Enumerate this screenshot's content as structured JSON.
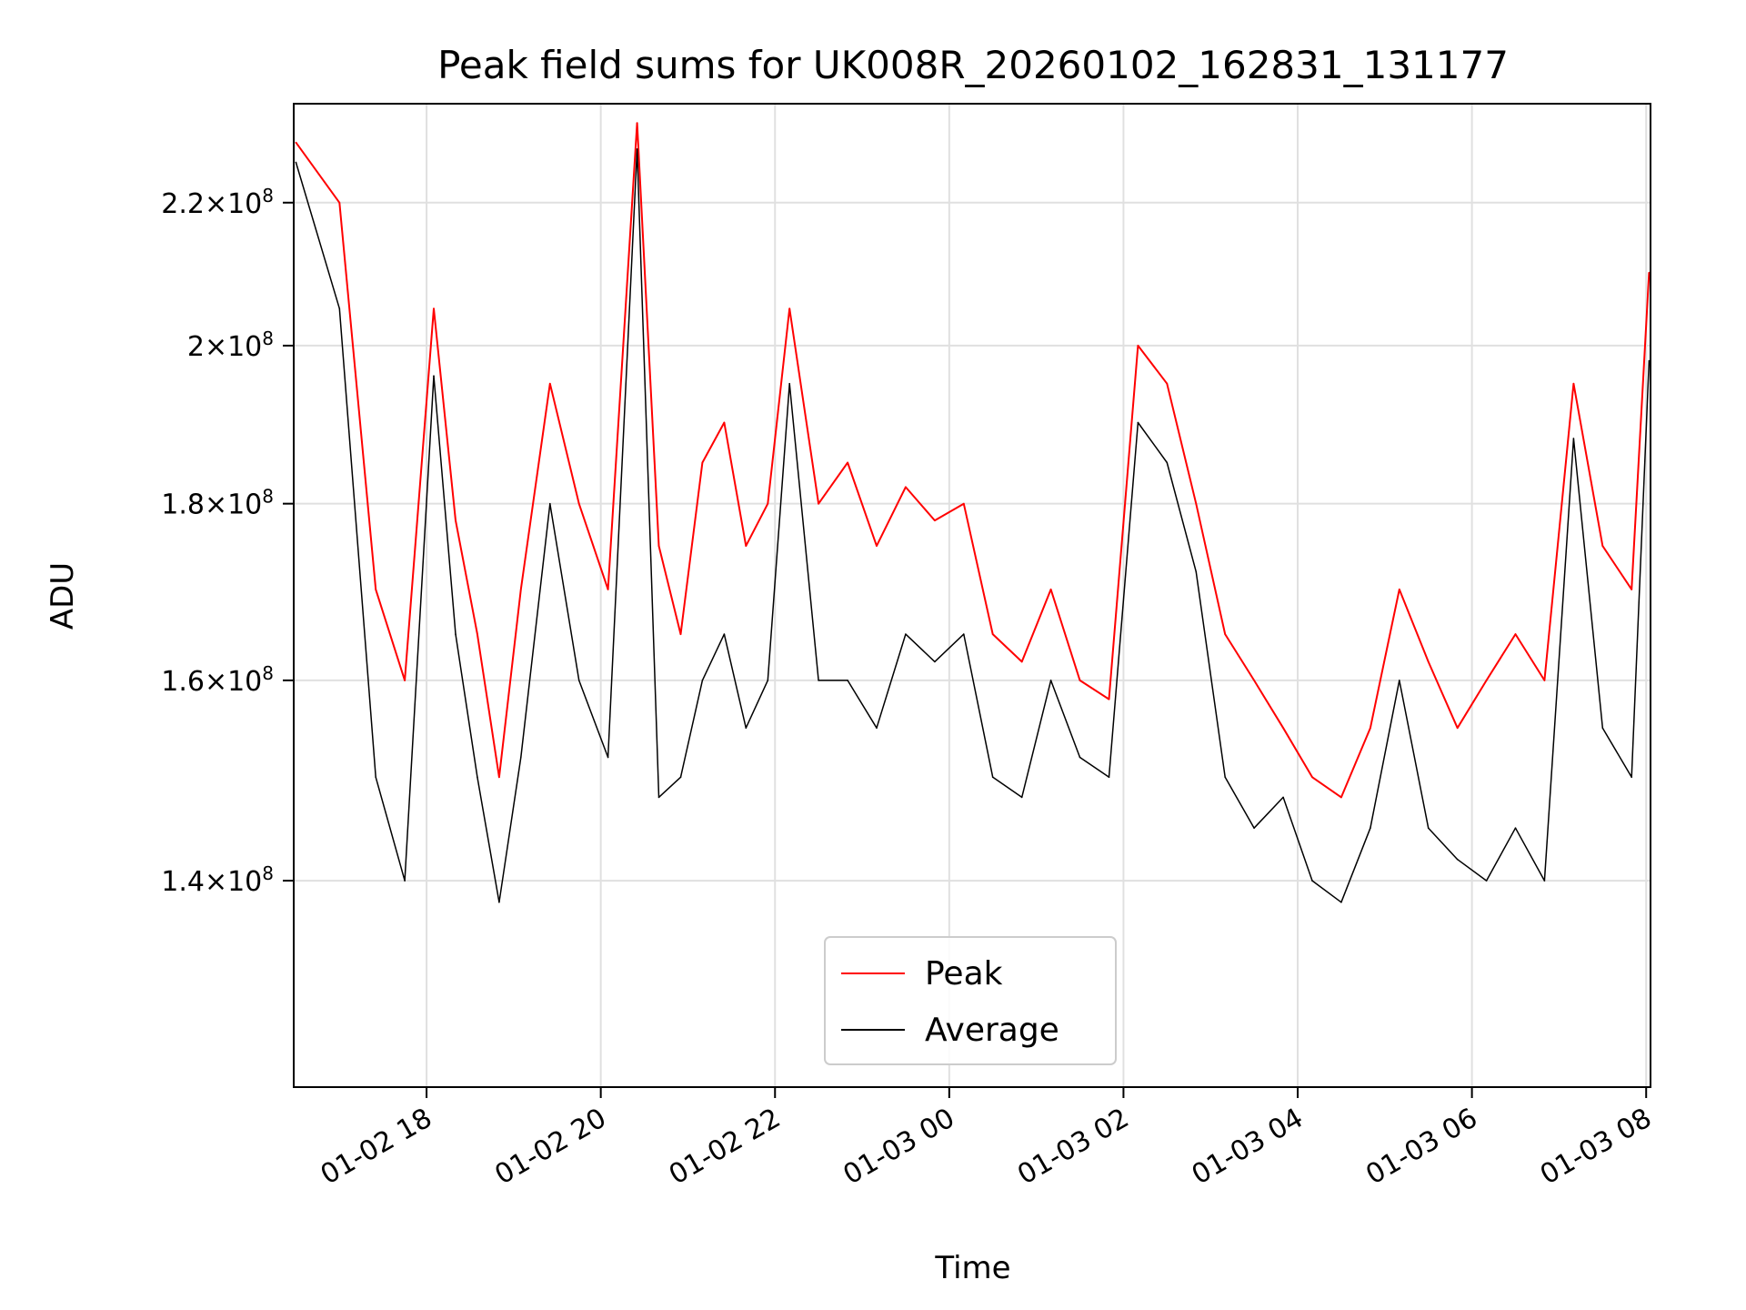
{
  "chart_data": {
    "type": "line",
    "title": "Peak field sums for UK008R_20260102_162831_131177",
    "xlabel": "Time",
    "ylabel": "ADU",
    "x_range": [
      "2026-01-02 16:28:31",
      "2026-01-03 08:03:00"
    ],
    "ylim": [
      122000000,
      235000000
    ],
    "y_scale": "log",
    "grid": true,
    "legend_position": "lower-center",
    "x_ticks": [
      {
        "value": "2026-01-02 18:00",
        "label": "01-02 18"
      },
      {
        "value": "2026-01-02 20:00",
        "label": "01-02 20"
      },
      {
        "value": "2026-01-02 22:00",
        "label": "01-02 22"
      },
      {
        "value": "2026-01-03 00:00",
        "label": "01-03 00"
      },
      {
        "value": "2026-01-03 02:00",
        "label": "01-03 02"
      },
      {
        "value": "2026-01-03 04:00",
        "label": "01-03 04"
      },
      {
        "value": "2026-01-03 06:00",
        "label": "01-03 06"
      },
      {
        "value": "2026-01-03 08:00",
        "label": "01-03 08"
      }
    ],
    "y_ticks": [
      {
        "value": 140000000,
        "mantissa": "1.4",
        "exponent": "8"
      },
      {
        "value": 160000000,
        "mantissa": "1.6",
        "exponent": "8"
      },
      {
        "value": 180000000,
        "mantissa": "1.8",
        "exponent": "8"
      },
      {
        "value": 200000000,
        "mantissa": "2",
        "exponent": "8"
      },
      {
        "value": 220000000,
        "mantissa": "2.2",
        "exponent": "8"
      }
    ],
    "series": [
      {
        "name": "Peak",
        "color": "#ff0000",
        "x": [
          "2026-01-02 16:30",
          "2026-01-02 17:00",
          "2026-01-02 17:25",
          "2026-01-02 17:45",
          "2026-01-02 18:05",
          "2026-01-02 18:20",
          "2026-01-02 18:35",
          "2026-01-02 18:50",
          "2026-01-02 19:05",
          "2026-01-02 19:25",
          "2026-01-02 19:45",
          "2026-01-02 20:05",
          "2026-01-02 20:25",
          "2026-01-02 20:40",
          "2026-01-02 20:55",
          "2026-01-02 21:10",
          "2026-01-02 21:25",
          "2026-01-02 21:40",
          "2026-01-02 21:55",
          "2026-01-02 22:10",
          "2026-01-02 22:30",
          "2026-01-02 22:50",
          "2026-01-02 23:10",
          "2026-01-02 23:30",
          "2026-01-02 23:50",
          "2026-01-03 00:10",
          "2026-01-03 00:30",
          "2026-01-03 00:50",
          "2026-01-03 01:10",
          "2026-01-03 01:30",
          "2026-01-03 01:50",
          "2026-01-03 02:10",
          "2026-01-03 02:30",
          "2026-01-03 02:50",
          "2026-01-03 03:10",
          "2026-01-03 03:30",
          "2026-01-03 03:50",
          "2026-01-03 04:10",
          "2026-01-03 04:30",
          "2026-01-03 04:50",
          "2026-01-03 05:10",
          "2026-01-03 05:30",
          "2026-01-03 05:50",
          "2026-01-03 06:10",
          "2026-01-03 06:30",
          "2026-01-03 06:50",
          "2026-01-03 07:10",
          "2026-01-03 07:30",
          "2026-01-03 07:50",
          "2026-01-03 08:02"
        ],
        "values": [
          229000000,
          220000000,
          170000000,
          160000000,
          205000000,
          178000000,
          165000000,
          150000000,
          170000000,
          195000000,
          180000000,
          170000000,
          232000000,
          175000000,
          165000000,
          185000000,
          190000000,
          175000000,
          180000000,
          205000000,
          180000000,
          185000000,
          175000000,
          182000000,
          178000000,
          180000000,
          165000000,
          162000000,
          170000000,
          160000000,
          158000000,
          200000000,
          195000000,
          180000000,
          165000000,
          160000000,
          155000000,
          150000000,
          148000000,
          155000000,
          170000000,
          162000000,
          155000000,
          160000000,
          165000000,
          160000000,
          195000000,
          175000000,
          170000000,
          210000000
        ]
      },
      {
        "name": "Average",
        "color": "#000000",
        "x": [
          "2026-01-02 16:30",
          "2026-01-02 17:00",
          "2026-01-02 17:25",
          "2026-01-02 17:45",
          "2026-01-02 18:05",
          "2026-01-02 18:20",
          "2026-01-02 18:35",
          "2026-01-02 18:50",
          "2026-01-02 19:05",
          "2026-01-02 19:25",
          "2026-01-02 19:45",
          "2026-01-02 20:05",
          "2026-01-02 20:25",
          "2026-01-02 20:40",
          "2026-01-02 20:55",
          "2026-01-02 21:10",
          "2026-01-02 21:25",
          "2026-01-02 21:40",
          "2026-01-02 21:55",
          "2026-01-02 22:10",
          "2026-01-02 22:30",
          "2026-01-02 22:50",
          "2026-01-02 23:10",
          "2026-01-02 23:30",
          "2026-01-02 23:50",
          "2026-01-03 00:10",
          "2026-01-03 00:30",
          "2026-01-03 00:50",
          "2026-01-03 01:10",
          "2026-01-03 01:30",
          "2026-01-03 01:50",
          "2026-01-03 02:10",
          "2026-01-03 02:30",
          "2026-01-03 02:50",
          "2026-01-03 03:10",
          "2026-01-03 03:30",
          "2026-01-03 03:50",
          "2026-01-03 04:10",
          "2026-01-03 04:30",
          "2026-01-03 04:50",
          "2026-01-03 05:10",
          "2026-01-03 05:30",
          "2026-01-03 05:50",
          "2026-01-03 06:10",
          "2026-01-03 06:30",
          "2026-01-03 06:50",
          "2026-01-03 07:10",
          "2026-01-03 07:30",
          "2026-01-03 07:50",
          "2026-01-03 08:02"
        ],
        "values": [
          226000000,
          205000000,
          150000000,
          140000000,
          196000000,
          165000000,
          150000000,
          138000000,
          152000000,
          180000000,
          160000000,
          152000000,
          228000000,
          148000000,
          150000000,
          160000000,
          165000000,
          155000000,
          160000000,
          195000000,
          160000000,
          160000000,
          155000000,
          165000000,
          162000000,
          165000000,
          150000000,
          148000000,
          160000000,
          152000000,
          150000000,
          190000000,
          185000000,
          172000000,
          150000000,
          145000000,
          148000000,
          140000000,
          138000000,
          145000000,
          160000000,
          145000000,
          142000000,
          140000000,
          145000000,
          140000000,
          188000000,
          155000000,
          150000000,
          198000000
        ]
      }
    ]
  }
}
